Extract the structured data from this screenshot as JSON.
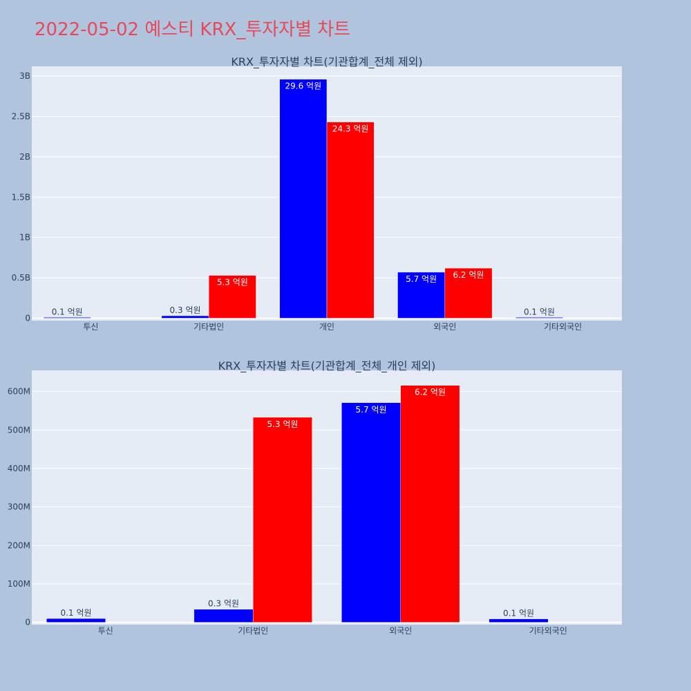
{
  "page": {
    "title": "2022-05-02 예스티 KRX_투자자별 차트",
    "title_color": "#e8495a",
    "background": "#b0c4de",
    "plot_background": "#e5ecf6"
  },
  "chart_data": [
    {
      "type": "bar",
      "title": "KRX_투자자별 차트(기관합계_전체 제외)",
      "xlabel": "",
      "ylabel": "",
      "categories": [
        "투신",
        "기타법인",
        "개인",
        "외국인",
        "기타외국인"
      ],
      "series": [
        {
          "color": "#0000ff",
          "values": [
            10000000,
            30000000,
            2960000000,
            570000000,
            10000000
          ],
          "labels": [
            "0.1 억원",
            "0.3 억원",
            "29.6 억원",
            "5.7 억원",
            "0.1 억원"
          ]
        },
        {
          "color": "#ff0000",
          "values": [
            0,
            530000000,
            2430000000,
            620000000,
            0
          ],
          "labels": [
            "",
            "5.3 억원",
            "24.3 억원",
            "6.2 억원",
            ""
          ]
        }
      ],
      "ylim": [
        -30000000,
        3120000000
      ],
      "yticks": [
        0,
        500000000,
        1000000000,
        1500000000,
        2000000000,
        2500000000,
        3000000000
      ],
      "ytick_labels": [
        "0",
        "0.5B",
        "1B",
        "1.5B",
        "2B",
        "2.5B",
        "3B"
      ],
      "grid": true,
      "legend": "none"
    },
    {
      "type": "bar",
      "title": "KRX_투자자별 차트(기관합계_전체_개인 제외)",
      "xlabel": "",
      "ylabel": "",
      "categories": [
        "투신",
        "기타법인",
        "외국인",
        "기타외국인"
      ],
      "series": [
        {
          "color": "#0000ff",
          "values": [
            10000000,
            34000000,
            571000000,
            9000000
          ],
          "labels": [
            "0.1 억원",
            "0.3 억원",
            "5.7 억원",
            "0.1 억원"
          ]
        },
        {
          "color": "#ff0000",
          "values": [
            0,
            533000000,
            616000000,
            0
          ],
          "labels": [
            "",
            "5.3 억원",
            "6.2 억원",
            ""
          ]
        }
      ],
      "ylim": [
        -6000000,
        655000000
      ],
      "yticks": [
        0,
        100000000,
        200000000,
        300000000,
        400000000,
        500000000,
        600000000
      ],
      "ytick_labels": [
        "0",
        "100M",
        "200M",
        "300M",
        "400M",
        "500M",
        "600M"
      ],
      "grid": true,
      "legend": "none"
    }
  ]
}
